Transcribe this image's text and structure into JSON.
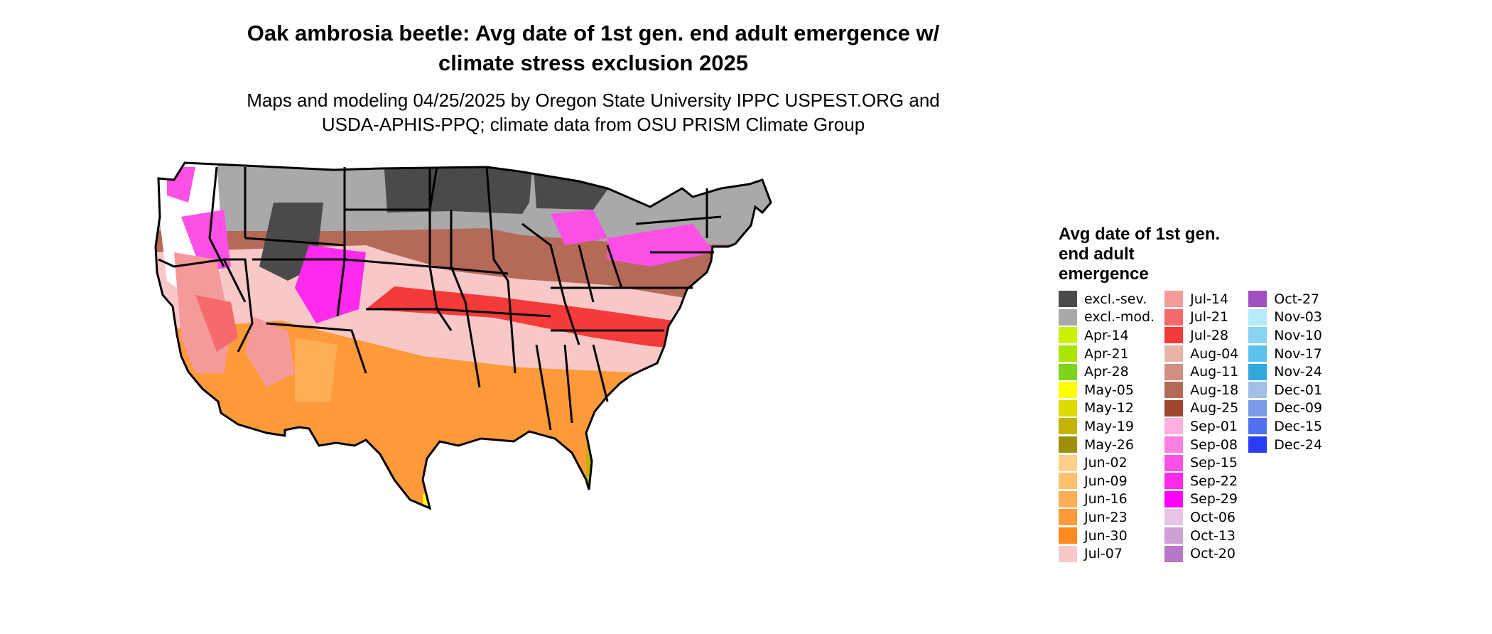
{
  "title": {
    "line1": "Oak ambrosia beetle: Avg date of 1st gen. end adult emergence w/",
    "line2": "climate stress exclusion 2025"
  },
  "subtitle": {
    "line1": "Maps and modeling 04/25/2025 by Oregon State University IPPC USPEST.ORG and",
    "line2": "USDA-APHIS-PPQ; climate data from OSU PRISM Climate Group"
  },
  "legend": {
    "title": "Avg date of 1st gen. end adult emergence",
    "columns": [
      [
        {
          "label": "excl.-sev.",
          "color": "#4a4a4a"
        },
        {
          "label": "excl.-mod.",
          "color": "#a9a9a9"
        },
        {
          "label": "Apr-14",
          "color": "#c8f200"
        },
        {
          "label": "Apr-21",
          "color": "#a8e600"
        },
        {
          "label": "Apr-28",
          "color": "#7ed41a"
        },
        {
          "label": "May-05",
          "color": "#ffff00"
        },
        {
          "label": "May-12",
          "color": "#e0d900"
        },
        {
          "label": "May-19",
          "color": "#c2b400"
        },
        {
          "label": "May-26",
          "color": "#9e8f0a"
        },
        {
          "label": "Jun-02",
          "color": "#ffd08a"
        },
        {
          "label": "Jun-09",
          "color": "#ffc070"
        },
        {
          "label": "Jun-16",
          "color": "#ffae55"
        },
        {
          "label": "Jun-23",
          "color": "#ff9a3a"
        },
        {
          "label": "Jun-30",
          "color": "#ff8a1e"
        },
        {
          "label": "Jul-07",
          "color": "#f8c8c8"
        }
      ],
      [
        {
          "label": "Jul-14",
          "color": "#f59a9a"
        },
        {
          "label": "Jul-21",
          "color": "#f56a6a"
        },
        {
          "label": "Jul-28",
          "color": "#f53a3a"
        },
        {
          "label": "Aug-04",
          "color": "#e8b4a8"
        },
        {
          "label": "Aug-11",
          "color": "#d08f80"
        },
        {
          "label": "Aug-18",
          "color": "#b56a58"
        },
        {
          "label": "Aug-25",
          "color": "#a04530"
        },
        {
          "label": "Sep-01",
          "color": "#ffb0e0"
        },
        {
          "label": "Sep-08",
          "color": "#ff80e0"
        },
        {
          "label": "Sep-15",
          "color": "#ff50e6"
        },
        {
          "label": "Sep-22",
          "color": "#ff2aee"
        },
        {
          "label": "Sep-29",
          "color": "#ff00ff"
        },
        {
          "label": "Oct-06",
          "color": "#e6c4e6"
        },
        {
          "label": "Oct-13",
          "color": "#cfa0d6"
        },
        {
          "label": "Oct-20",
          "color": "#b878c8"
        }
      ],
      [
        {
          "label": "Oct-27",
          "color": "#a050c0"
        },
        {
          "label": "Nov-03",
          "color": "#b8eaff"
        },
        {
          "label": "Nov-10",
          "color": "#88d4f2"
        },
        {
          "label": "Nov-17",
          "color": "#5cc2ec"
        },
        {
          "label": "Nov-24",
          "color": "#30a8e0"
        },
        {
          "label": "Dec-01",
          "color": "#a0c0e8"
        },
        {
          "label": "Dec-09",
          "color": "#7a9be8"
        },
        {
          "label": "Dec-15",
          "color": "#5070ee"
        },
        {
          "label": "Dec-24",
          "color": "#2a3cf5"
        }
      ]
    ]
  },
  "map": {
    "legend_placement": "right",
    "outline_color": "#000000",
    "regions": [
      {
        "id": "upper-midwest-severe",
        "category": "excl.-sev."
      },
      {
        "id": "northern-plains-moderate",
        "category": "excl.-mod."
      },
      {
        "id": "northeast-moderate",
        "category": "excl.-mod."
      },
      {
        "id": "great-lakes-fall",
        "category": "Sep-15"
      },
      {
        "id": "central-band-august",
        "category": "Aug-11"
      },
      {
        "id": "mid-band-july",
        "category": "Jul-28"
      },
      {
        "id": "southern-band-june",
        "category": "Jun-23"
      },
      {
        "id": "gulf-coast-may",
        "category": "May-12"
      },
      {
        "id": "florida-tip-april",
        "category": "Apr-21"
      },
      {
        "id": "california-july",
        "category": "Jul-14"
      },
      {
        "id": "west-mountain-fall",
        "category": "Sep-29"
      }
    ]
  }
}
